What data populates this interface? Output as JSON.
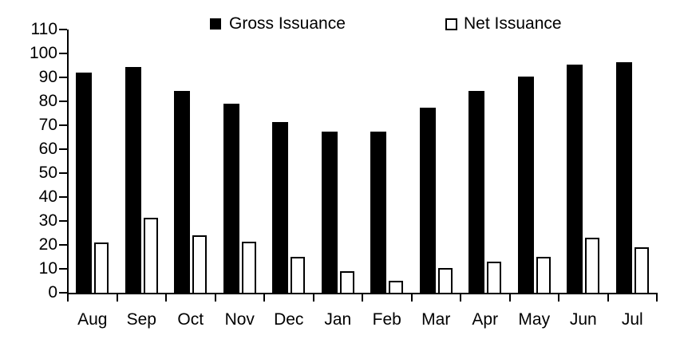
{
  "chart_data": {
    "type": "bar",
    "title": "",
    "xlabel": "",
    "ylabel": "",
    "categories": [
      "Aug",
      "Sep",
      "Oct",
      "Nov",
      "Dec",
      "Jan",
      "Feb",
      "Mar",
      "Apr",
      "May",
      "Jun",
      "Jul"
    ],
    "series": [
      {
        "name": "Gross Issuance",
        "slug": "gross",
        "fill": "#000000",
        "values": [
          92,
          94.5,
          84.5,
          79,
          71.5,
          67.5,
          67.5,
          77.5,
          84.5,
          90.5,
          95.5,
          96.5
        ]
      },
      {
        "name": "Net Issuance",
        "slug": "net",
        "fill": "#FFFFFF",
        "border": "#000000",
        "values": [
          21,
          31.5,
          24,
          21.5,
          15,
          9,
          5,
          10.5,
          13,
          15,
          23,
          19
        ]
      }
    ],
    "ylim": [
      0,
      110
    ],
    "ytick_step": 10,
    "y_tick_labels": [
      "0",
      "10",
      "20",
      "30",
      "40",
      "50",
      "60",
      "70",
      "80",
      "90",
      "100",
      "110"
    ],
    "grid": false,
    "legend_position": "top",
    "colors": {
      "axis": "#000000",
      "text": "#000000",
      "background": "#FFFFFF"
    }
  }
}
